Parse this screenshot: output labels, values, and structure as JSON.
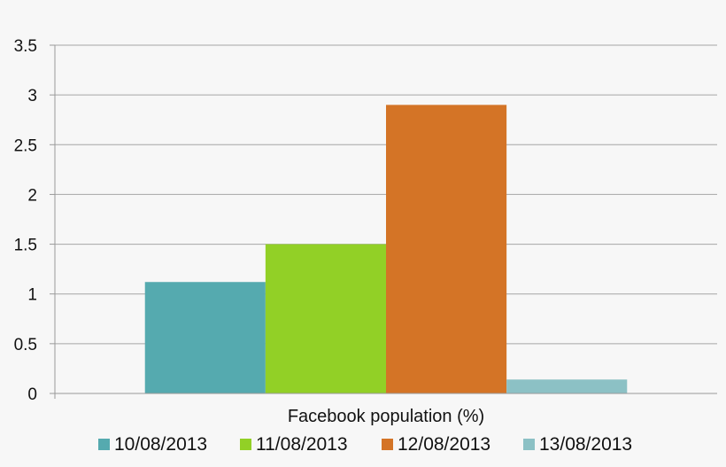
{
  "chart_data": {
    "type": "bar",
    "categories": [
      "Facebook population (%)"
    ],
    "series": [
      {
        "name": "10/08/2013",
        "values": [
          1.12
        ],
        "color": "#55aaaf"
      },
      {
        "name": "11/08/2013",
        "values": [
          1.5
        ],
        "color": "#92d026"
      },
      {
        "name": "12/08/2013",
        "values": [
          2.9
        ],
        "color": "#d47426"
      },
      {
        "name": "13/08/2013",
        "values": [
          0.14
        ],
        "color": "#8cc1c5"
      }
    ],
    "xlabel": "Facebook population (%)",
    "ylabel": "",
    "ylim": [
      0,
      3.5
    ],
    "yticks": [
      "0",
      "0.5",
      "1",
      "1.5",
      "2",
      "2.5",
      "3",
      "3.5"
    ],
    "grid": true,
    "legend_position": "bottom"
  }
}
